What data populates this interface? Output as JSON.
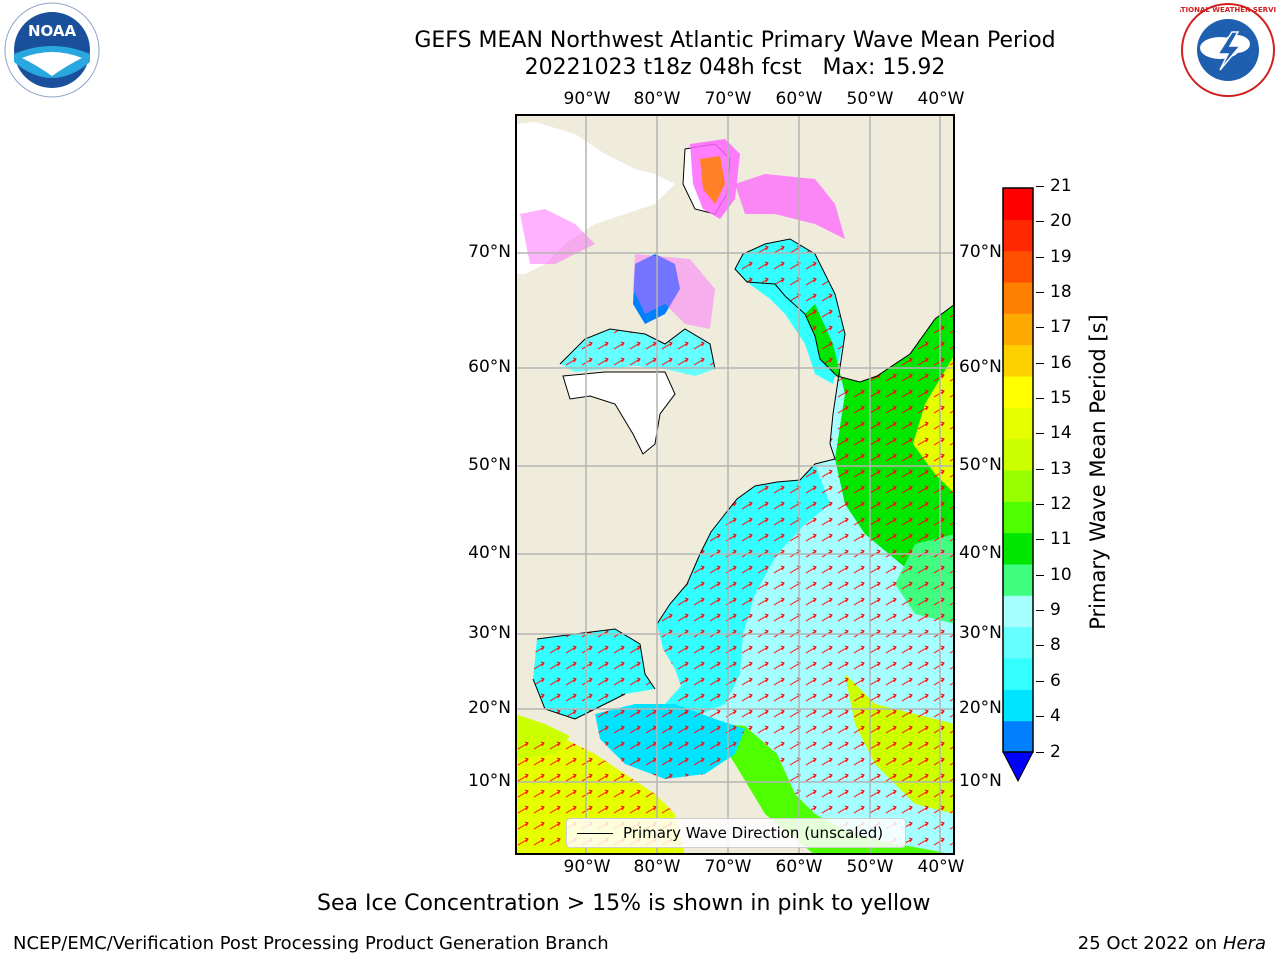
{
  "title_line1": "GEFS MEAN Northwest Atlantic Primary Wave Mean Period",
  "title_line2": "20221023 t18z 048h fcst   Max: 15.92",
  "map": {
    "lon_labels": [
      "90°W",
      "80°W",
      "70°W",
      "60°W",
      "50°W",
      "40°W"
    ],
    "lat_labels": [
      "70°N",
      "60°N",
      "50°N",
      "40°N",
      "30°N",
      "20°N",
      "10°N"
    ],
    "legend_label": "Primary Wave Direction (unscaled)",
    "colors": {
      "land": "#efecdc",
      "ice": "#ff66ff",
      "arrow": "#ff0000",
      "grid": "#b4b4b4"
    }
  },
  "colorbar": {
    "label": "Primary Wave Mean Period [s]",
    "ticks": [
      "21",
      "20",
      "19",
      "18",
      "17",
      "16",
      "15",
      "14",
      "13",
      "12",
      "11",
      "10",
      "9",
      "8",
      "6",
      "4",
      "2"
    ],
    "colors": [
      "#0000ff",
      "#0080ff",
      "#00e5ff",
      "#33ffff",
      "#66ffff",
      "#a6ffff",
      "#40ff80",
      "#00e600",
      "#4dff00",
      "#99ff00",
      "#ccff00",
      "#e6ff00",
      "#ffff00",
      "#ffd000",
      "#ffaa00",
      "#ff8000",
      "#ff5000",
      "#ff2800",
      "#ff0000"
    ]
  },
  "note": "Sea Ice Concentration > 15% is shown in pink to yellow",
  "footer_left": "NCEP/EMC/Verification Post Processing Product Generation Branch",
  "footer_right_prefix": "25 Oct 2022 on ",
  "footer_right_host": "Hera",
  "logos": {
    "left": "noaa-logo",
    "right": "nws-logo",
    "left_text": "NOAA",
    "right_ring_text": "NATIONAL WEATHER SERVICE"
  }
}
